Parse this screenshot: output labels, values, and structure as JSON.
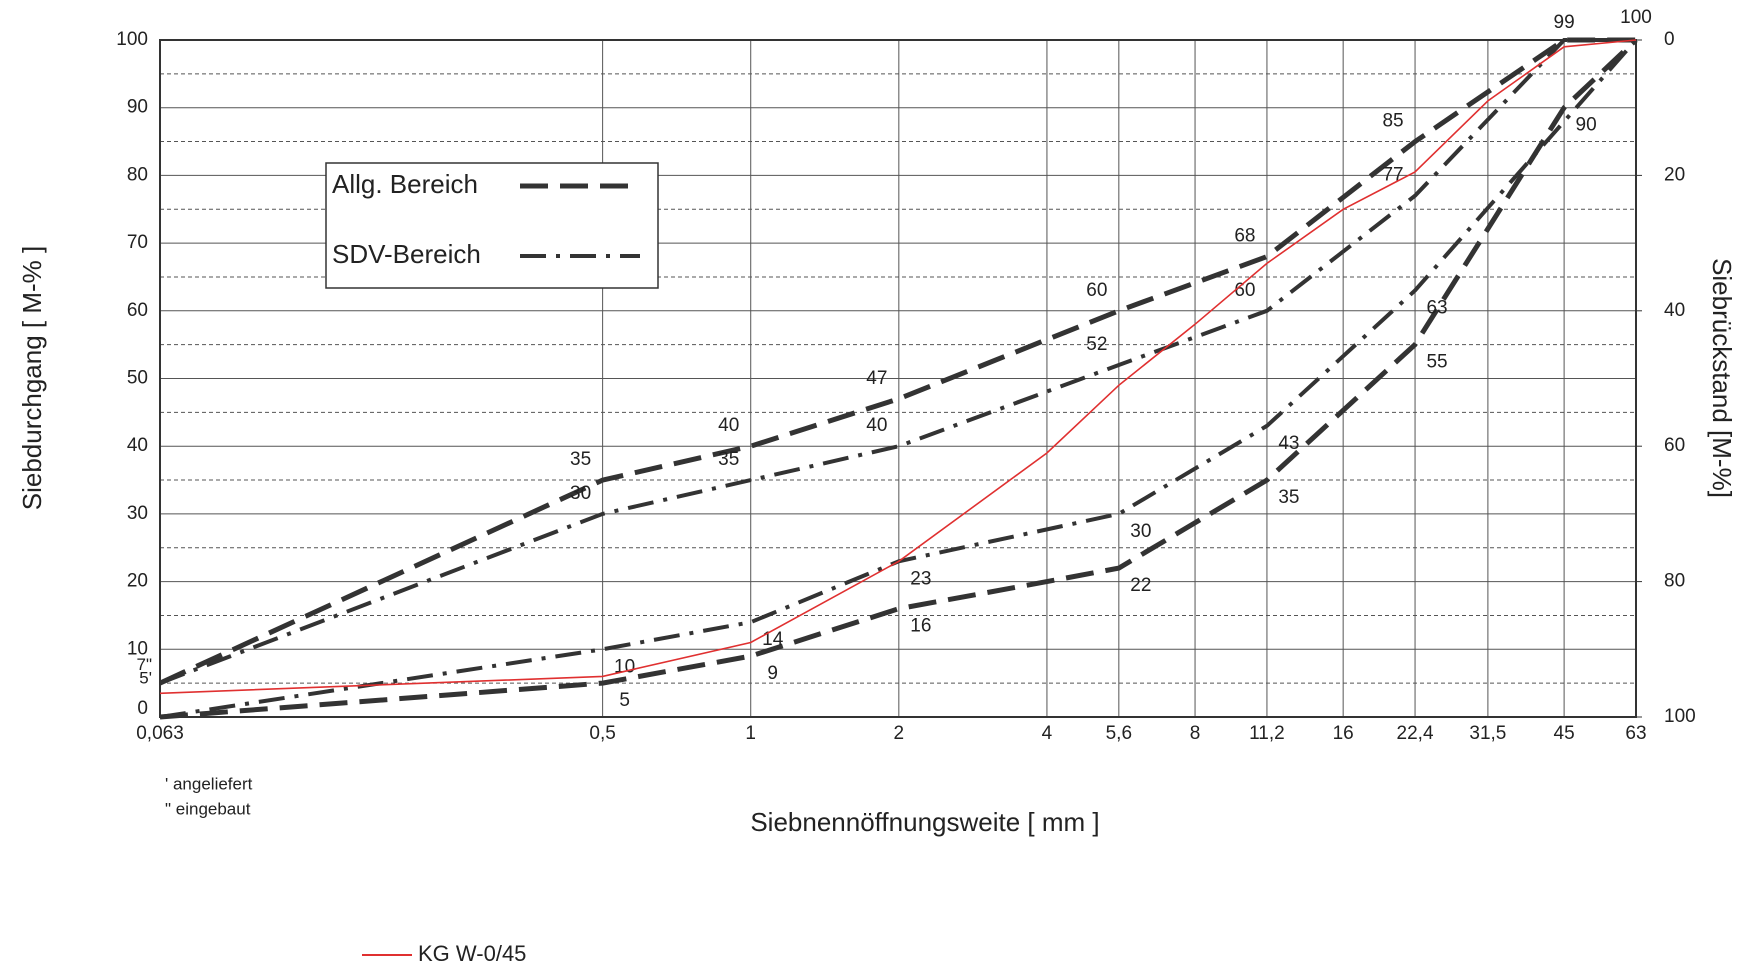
{
  "chart_data": {
    "type": "line",
    "xscale": "log",
    "y_label": "Siebdurchgang [ M-% ]",
    "y2_label": "Siebrückstand [M-%]",
    "x_label": "Siebnennöffnungsweite [ mm ]",
    "xlim": [
      0.063,
      63
    ],
    "xticks": [
      {
        "value": 0.063,
        "label": "0,063"
      },
      {
        "value": 0.5,
        "label": "0,5"
      },
      1,
      2,
      4,
      {
        "value": 5.6,
        "label": "5,6"
      },
      8,
      {
        "value": 11.2,
        "label": "11,2"
      },
      16,
      {
        "value": 22.4,
        "label": "22,4"
      },
      {
        "value": 31.5,
        "label": "31,5"
      },
      45,
      63
    ],
    "ylim": [
      0,
      100
    ],
    "yticks": [
      0,
      10,
      20,
      30,
      40,
      50,
      60,
      70,
      80,
      90,
      100
    ],
    "y_minor_grid": [
      5,
      15,
      25,
      35,
      45,
      55,
      65,
      75,
      85,
      95
    ],
    "y2lim": [
      100,
      0
    ],
    "y2ticks": [
      0,
      20,
      40,
      60,
      80,
      100
    ],
    "grid": true,
    "axis_notes": [
      {
        "value": 7,
        "label": "7\""
      },
      {
        "value": 5,
        "label": "5'"
      }
    ],
    "footnotes": [
      "' angeliefert",
      "\" eingebaut"
    ],
    "series": [
      {
        "name": "Allg. Bereich",
        "color": "#333333",
        "dash": "dashed",
        "curves": [
          {
            "x": [
              0.063,
              0.5,
              1,
              2,
              5.6,
              11.2,
              22.4,
              45,
              63
            ],
            "values": [
              5,
              35,
              40,
              47,
              60,
              68,
              85,
              100,
              100
            ],
            "value_labels": [
              null,
              "35",
              "40",
              "47",
              "60",
              "68",
              "85",
              null,
              null
            ]
          },
          {
            "x": [
              0.063,
              0.5,
              1,
              2,
              4,
              5.6,
              11.2,
              22.4,
              45,
              63
            ],
            "values": [
              0,
              5,
              9,
              16,
              20,
              22,
              35,
              55,
              90,
              100
            ],
            "value_labels": [
              null,
              "5",
              "9",
              "16",
              null,
              "22",
              "35",
              "55",
              "90",
              null
            ]
          }
        ]
      },
      {
        "name": "SDV-Bereich",
        "color": "#333333",
        "dash": "dash-dot",
        "curves": [
          {
            "x": [
              0.063,
              0.5,
              1,
              2,
              5.6,
              11.2,
              22.4,
              45,
              63
            ],
            "values": [
              5,
              30,
              35,
              40,
              52,
              60,
              77,
              100,
              100
            ],
            "value_labels": [
              null,
              "30",
              "35",
              "40",
              "52",
              "60",
              "77",
              null,
              null
            ]
          },
          {
            "x": [
              0.063,
              0.5,
              1,
              2,
              5.6,
              11.2,
              22.4,
              63
            ],
            "values": [
              0,
              10,
              14,
              23,
              30,
              43,
              63,
              100
            ],
            "value_labels": [
              null,
              "10",
              "14",
              "23",
              "30",
              "43",
              "63",
              null
            ]
          }
        ]
      },
      {
        "name": "KG W-0/45",
        "color": "#e03030",
        "dash": "solid",
        "curves": [
          {
            "x": [
              0.063,
              0.5,
              1,
              2,
              4,
              5.6,
              8,
              11.2,
              16,
              22.4,
              31.5,
              45,
              63
            ],
            "values": [
              3.5,
              6,
              11,
              23,
              39,
              49,
              58,
              67,
              75,
              80.5,
              91,
              99,
              100
            ],
            "value_labels": [
              null,
              null,
              null,
              null,
              null,
              null,
              null,
              null,
              null,
              null,
              null,
              "99",
              "100"
            ]
          }
        ]
      }
    ]
  }
}
